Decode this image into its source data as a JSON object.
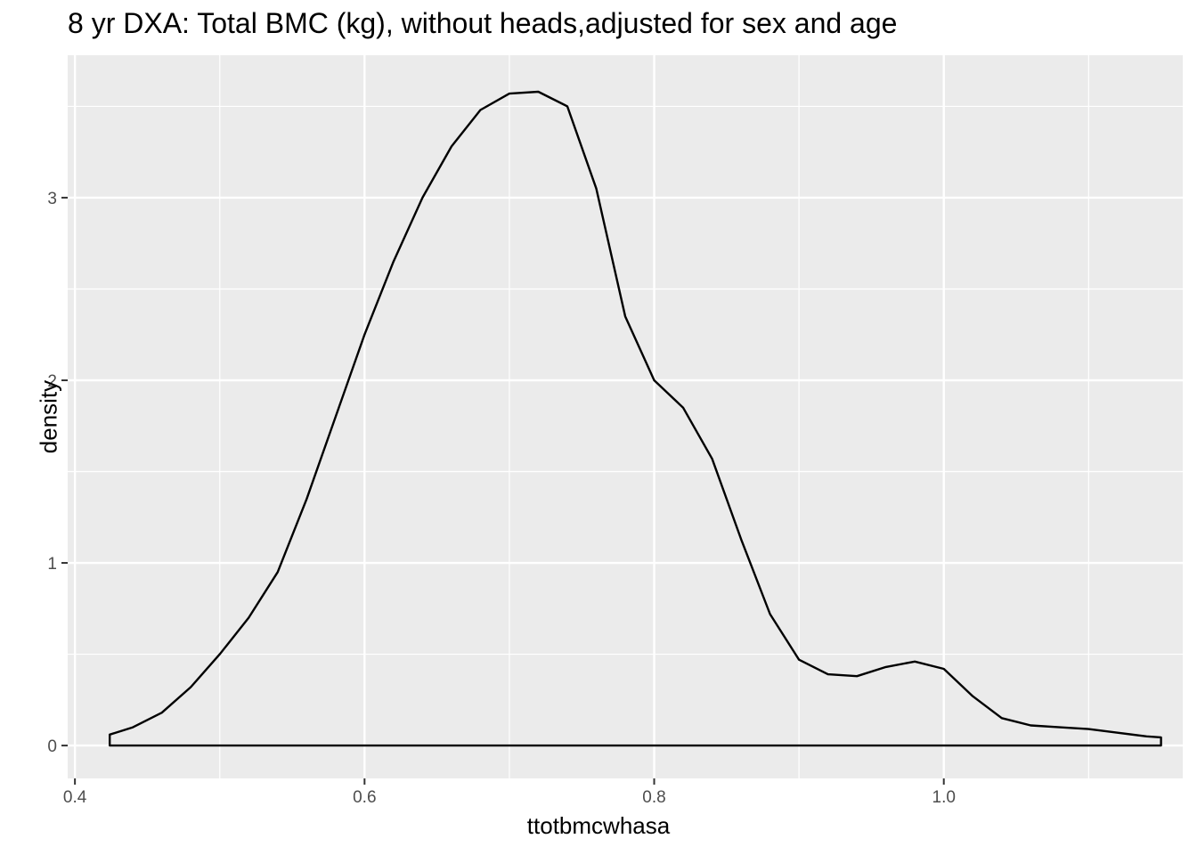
{
  "chart_data": {
    "type": "area",
    "title": "8 yr DXA: Total BMC (kg), without heads,adjusted for sex and age",
    "xlabel": "ttotbmcwhasa",
    "ylabel": "density",
    "xlim": [
      0.395,
      1.165
    ],
    "ylim": [
      -0.18,
      3.78
    ],
    "x_ticks": [
      0.4,
      0.6,
      0.8,
      1.0
    ],
    "x_tick_labels": [
      "0.4",
      "0.6",
      "0.8",
      "1.0"
    ],
    "y_ticks": [
      0,
      1,
      2,
      3
    ],
    "y_tick_labels": [
      "0",
      "1",
      "2",
      "3"
    ],
    "grid": true,
    "legend": "none",
    "colors": {
      "panel": "#ebebeb",
      "grid": "#ffffff",
      "line": "#000000",
      "fill": "none"
    },
    "series": [
      {
        "x": [
          0.424,
          0.424,
          0.44,
          0.46,
          0.48,
          0.5,
          0.52,
          0.54,
          0.56,
          0.58,
          0.6,
          0.62,
          0.64,
          0.66,
          0.68,
          0.7,
          0.72,
          0.74,
          0.76,
          0.78,
          0.8,
          0.82,
          0.84,
          0.86,
          0.88,
          0.9,
          0.92,
          0.94,
          0.96,
          0.98,
          1.0,
          1.02,
          1.04,
          1.06,
          1.08,
          1.1,
          1.12,
          1.14,
          1.15,
          1.15
        ],
        "y": [
          0.0,
          0.06,
          0.1,
          0.18,
          0.32,
          0.5,
          0.7,
          0.95,
          1.35,
          1.8,
          2.25,
          2.65,
          3.0,
          3.28,
          3.48,
          3.57,
          3.58,
          3.5,
          3.05,
          2.35,
          2.0,
          1.85,
          1.57,
          1.13,
          0.72,
          0.47,
          0.39,
          0.38,
          0.43,
          0.46,
          0.42,
          0.27,
          0.15,
          0.11,
          0.1,
          0.09,
          0.07,
          0.05,
          0.045,
          0.0
        ]
      }
    ]
  }
}
